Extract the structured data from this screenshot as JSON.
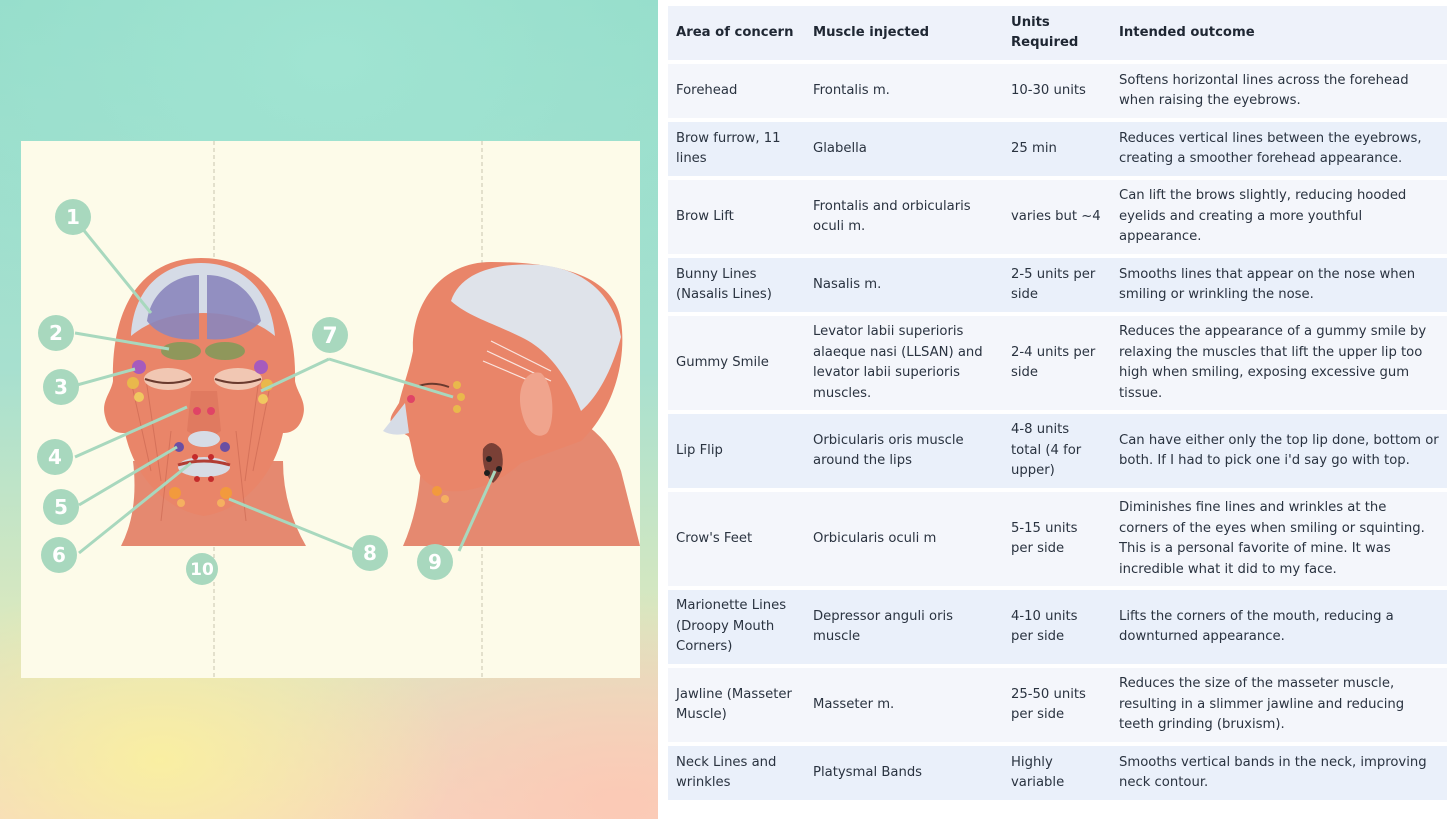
{
  "figure": {
    "callouts": [
      "1",
      "2",
      "3",
      "4",
      "5",
      "6",
      "7",
      "8",
      "9",
      "10"
    ],
    "colors": {
      "badge": "#a8d8be",
      "line": "#a8d8be",
      "panel": "#fdfbe9",
      "muscle": "#e9826b",
      "skull": "#d9dde4"
    }
  },
  "table": {
    "headers": [
      "Area of concern",
      "Muscle injected",
      "Units Required",
      "Intended outcome"
    ],
    "rows": [
      [
        "Forehead",
        "Frontalis m.",
        "10-30 units",
        "Softens horizontal lines across the forehead when raising the eyebrows."
      ],
      [
        "Brow furrow, 11 lines",
        "Glabella",
        "25 min",
        "Reduces vertical lines between the eyebrows, creating a smoother forehead appearance."
      ],
      [
        "Brow Lift",
        "Frontalis and orbicularis oculi m.",
        "varies but ~4",
        "Can lift the brows slightly, reducing hooded eyelids and creating a more youthful appearance."
      ],
      [
        "Bunny Lines (Nasalis Lines)",
        "Nasalis m.",
        "2-5 units per side",
        "Smooths lines that appear on the nose when smiling or wrinkling the nose."
      ],
      [
        "Gummy Smile",
        "Levator labii superioris alaeque nasi (LLSAN) and levator labii superioris muscles.",
        "2-4 units per side",
        "Reduces the appearance of a gummy smile by relaxing the muscles that lift the upper lip too high when smiling, exposing excessive gum tissue."
      ],
      [
        "Lip Flip",
        "Orbicularis oris muscle around the lips",
        "4-8 units total (4 for upper)",
        "Can have either only the top lip done, bottom or both. If I had to pick one i'd say go with top."
      ],
      [
        "Crow's Feet",
        "Orbicularis oculi m",
        "5-15 units per side",
        "Diminishes fine lines and wrinkles at the corners of the eyes when smiling or squinting. This is a personal favorite of mine. It was incredible what it did to my face."
      ],
      [
        "Marionette Lines (Droopy Mouth Corners)",
        "Depressor anguli oris muscle",
        "4-10 units per side",
        "Lifts the corners of the mouth, reducing a downturned appearance."
      ],
      [
        "Jawline (Masseter Muscle)",
        "Masseter m.",
        "25-50 units per side",
        "Reduces the size of the masseter muscle, resulting in a slimmer jawline and reducing teeth grinding (bruxism)."
      ],
      [
        "Neck Lines and wrinkles",
        "Platysmal Bands",
        "Highly variable",
        "Smooths vertical bands in the neck, improving neck contour."
      ]
    ]
  }
}
